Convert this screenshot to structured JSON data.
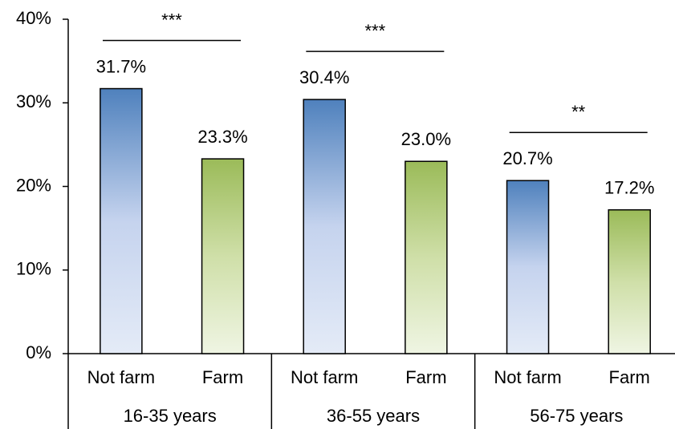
{
  "chart_data": {
    "type": "bar",
    "categories": [
      "16-35 years",
      "36-55 years",
      "56-75 years"
    ],
    "series": [
      {
        "name": "Not farm",
        "color": "#4f81bd",
        "values": [
          31.7,
          30.4,
          20.7
        ],
        "value_labels": [
          "31.7%",
          "30.4%",
          "20.7%"
        ]
      },
      {
        "name": "Farm",
        "color": "#9bbb59",
        "values": [
          23.3,
          23.0,
          17.2
        ],
        "value_labels": [
          "23.3%",
          "23.0%",
          "17.2%"
        ]
      }
    ],
    "significance": [
      "***",
      "***",
      "**"
    ],
    "ylim": [
      0,
      40
    ],
    "yticks": [
      {
        "value": 0,
        "label": "0%"
      },
      {
        "value": 10,
        "label": "10%"
      },
      {
        "value": 20,
        "label": "20%"
      },
      {
        "value": 30,
        "label": "30%"
      },
      {
        "value": 40,
        "label": "40%"
      }
    ],
    "grid": false
  }
}
